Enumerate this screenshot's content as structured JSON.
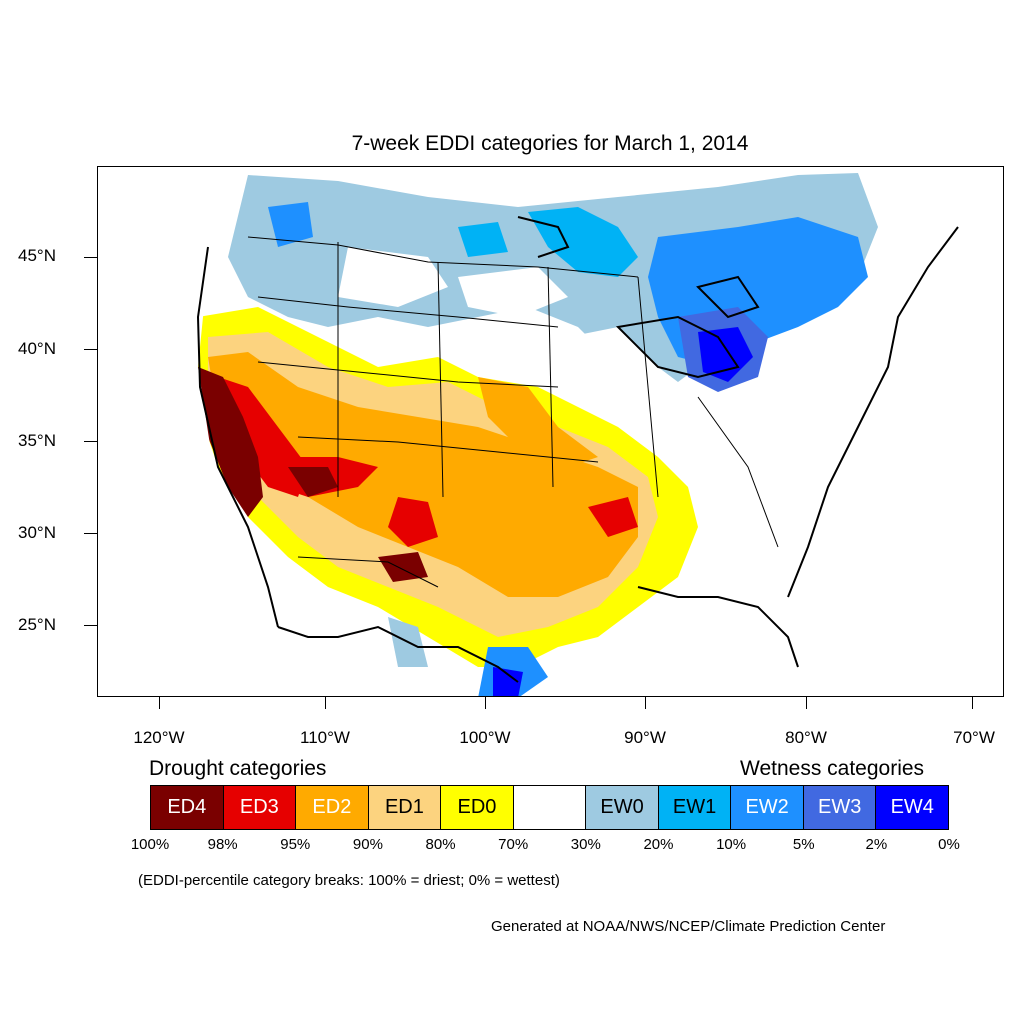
{
  "title": "7-week EDDI categories for March 1, 2014",
  "axes": {
    "lat_labels": [
      "45°N",
      "40°N",
      "35°N",
      "30°N",
      "25°N"
    ],
    "lon_labels": [
      "120°W",
      "110°W",
      "100°W",
      "90°W",
      "80°W",
      "70°W"
    ]
  },
  "legend": {
    "drought_heading": "Drought categories",
    "wetness_heading": "Wetness categories",
    "categories": [
      {
        "label": "ED4",
        "color": "#7a0000",
        "text_color": "#ffffff"
      },
      {
        "label": "ED3",
        "color": "#e60000",
        "text_color": "#ffffff"
      },
      {
        "label": "ED2",
        "color": "#ffaa00",
        "text_color": "#ffffff"
      },
      {
        "label": "ED1",
        "color": "#fcd37f",
        "text_color": "#000000"
      },
      {
        "label": "ED0",
        "color": "#ffff00",
        "text_color": "#000000"
      },
      {
        "label": "",
        "color": "#ffffff",
        "text_color": "#000000"
      },
      {
        "label": "EW0",
        "color": "#9ecae1",
        "text_color": "#000000"
      },
      {
        "label": "EW1",
        "color": "#00b2f5",
        "text_color": "#000000"
      },
      {
        "label": "EW2",
        "color": "#1e90ff",
        "text_color": "#ffffff"
      },
      {
        "label": "EW3",
        "color": "#4169e1",
        "text_color": "#ffffff"
      },
      {
        "label": "EW4",
        "color": "#0000ff",
        "text_color": "#ffffff"
      }
    ],
    "percentiles": [
      "100%",
      "98%",
      "95%",
      "90%",
      "80%",
      "70%",
      "30%",
      "20%",
      "10%",
      "5%",
      "2%",
      "0%"
    ]
  },
  "note": "(EDDI-percentile category breaks: 100% = driest; 0% = wettest)",
  "credit": "Generated at NOAA/NWS/NCEP/Climate Prediction Center"
}
